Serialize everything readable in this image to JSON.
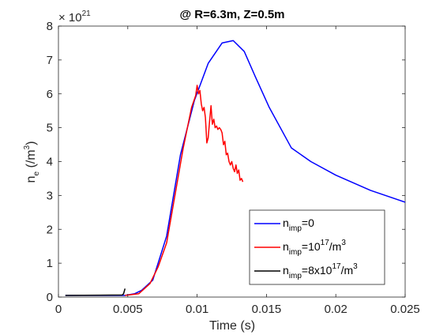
{
  "chart_data": {
    "type": "line",
    "title": "@ R=6.3m, Z=0.5m",
    "xlabel": "Time (s)",
    "ylabel": {
      "base": "n",
      "sub": "e",
      "unit_prefix": " (/m",
      "unit_sup": "3",
      "unit_suffix": ")"
    },
    "y_exponent": {
      "base": "× 10",
      "power": "21"
    },
    "xlim": [
      0,
      0.025
    ],
    "ylim": [
      0,
      8
    ],
    "xticks": [
      0,
      0.005,
      0.01,
      0.015,
      0.02,
      0.025
    ],
    "xtick_labels": [
      "0",
      "0.005",
      "0.01",
      "0.015",
      "0.02",
      "0.025"
    ],
    "yticks": [
      0,
      1,
      2,
      3,
      4,
      5,
      6,
      7,
      8
    ],
    "ytick_labels": [
      "0",
      "1",
      "2",
      "3",
      "4",
      "5",
      "6",
      "7",
      "8"
    ],
    "grid": false,
    "legend_position": "bottom-right",
    "series": [
      {
        "key": "nimp0",
        "color": "#0000ff",
        "legend": {
          "pre": "n",
          "sub": "imp",
          "mid": "=0",
          "sup": "",
          "post": ""
        },
        "x": [
          0.0005,
          0.0048,
          0.0055,
          0.006,
          0.0068,
          0.0078,
          0.0088,
          0.0098,
          0.0108,
          0.0118,
          0.0126,
          0.0134,
          0.0142,
          0.0152,
          0.0168,
          0.0182,
          0.02,
          0.0225,
          0.025
        ],
        "y": [
          0.05,
          0.05,
          0.1,
          0.2,
          0.5,
          1.8,
          4.2,
          5.8,
          6.9,
          7.5,
          7.57,
          7.25,
          6.5,
          5.6,
          4.4,
          4.0,
          3.6,
          3.15,
          2.8
        ]
      },
      {
        "key": "nimp1e17",
        "color": "#ff0000",
        "legend": {
          "pre": "n",
          "sub": "imp",
          "mid": "=10",
          "sup": "17",
          "post": "/m",
          "sup2": "3"
        },
        "x": [
          0.0048,
          0.0058,
          0.0066,
          0.0072,
          0.0078,
          0.0084,
          0.009,
          0.0096,
          0.0099,
          0.01,
          0.0101,
          0.0102,
          0.0103,
          0.0104,
          0.0105,
          0.0106,
          0.0107,
          0.0108,
          0.0109,
          0.011,
          0.0111,
          0.0112,
          0.0113,
          0.0114,
          0.0115,
          0.0116,
          0.0117,
          0.0118,
          0.0119,
          0.012,
          0.0121,
          0.0122,
          0.0123,
          0.0124,
          0.0125,
          0.0126,
          0.0127,
          0.0128,
          0.0129,
          0.013,
          0.0131,
          0.0132,
          0.0133
        ],
        "y": [
          0.05,
          0.1,
          0.4,
          0.9,
          1.6,
          3.0,
          4.4,
          5.6,
          5.95,
          6.25,
          6.0,
          6.1,
          5.7,
          5.5,
          5.6,
          5.3,
          4.55,
          4.7,
          5.2,
          5.65,
          5.1,
          5.25,
          5.0,
          5.05,
          4.95,
          5.0,
          4.95,
          4.85,
          4.5,
          4.6,
          4.2,
          4.25,
          4.0,
          3.9,
          4.0,
          3.8,
          3.7,
          3.9,
          3.65,
          3.75,
          3.45,
          3.5,
          3.4
        ]
      },
      {
        "key": "nimp8e17",
        "color": "#000000",
        "legend": {
          "pre": "n",
          "sub": "imp",
          "mid": "=8x10",
          "sup": "17",
          "post": "/m",
          "sup2": "3"
        },
        "x": [
          0.0005,
          0.0046,
          0.0047,
          0.0048
        ],
        "y": [
          0.05,
          0.06,
          0.1,
          0.25
        ]
      }
    ]
  }
}
